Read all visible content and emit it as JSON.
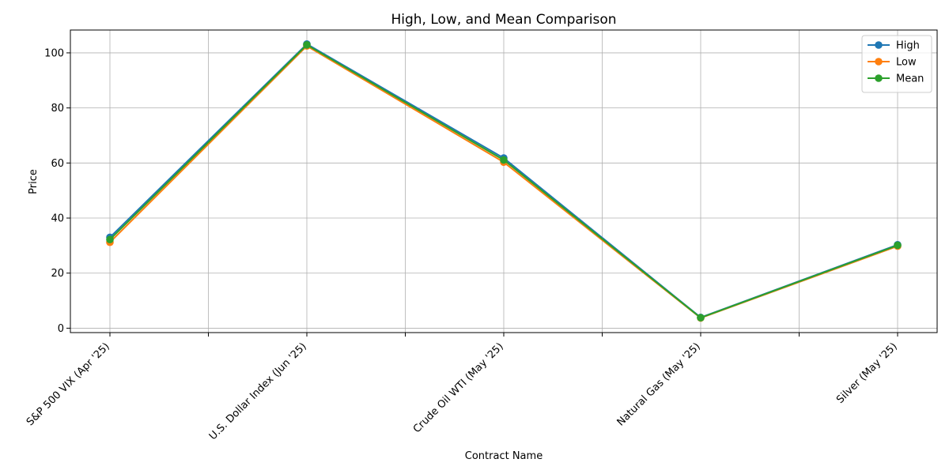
{
  "chart_data": {
    "type": "line",
    "title": "High, Low, and Mean Comparison",
    "xlabel": "Contract Name",
    "ylabel": "Price",
    "categories": [
      "S&P 500 VIX (Apr '25)",
      "U.S. Dollar Index (Jun '25)",
      "Crude Oil WTI (May '25)",
      "Natural Gas (May '25)",
      "Silver (May '25)"
    ],
    "yticks": [
      "0",
      "20",
      "40",
      "60",
      "80",
      "100"
    ],
    "ylim": [
      -1.6,
      108.3
    ],
    "grid": true,
    "legend_position": "top-right",
    "series": [
      {
        "name": "High",
        "color": "#1f77b4",
        "values": [
          33.0,
          103.2,
          61.8,
          3.9,
          30.3
        ]
      },
      {
        "name": "Low",
        "color": "#ff7f0e",
        "values": [
          31.2,
          102.5,
          60.3,
          3.7,
          29.8
        ]
      },
      {
        "name": "Mean",
        "color": "#2ca02c",
        "values": [
          32.2,
          102.9,
          61.1,
          3.8,
          30.1
        ]
      }
    ]
  }
}
